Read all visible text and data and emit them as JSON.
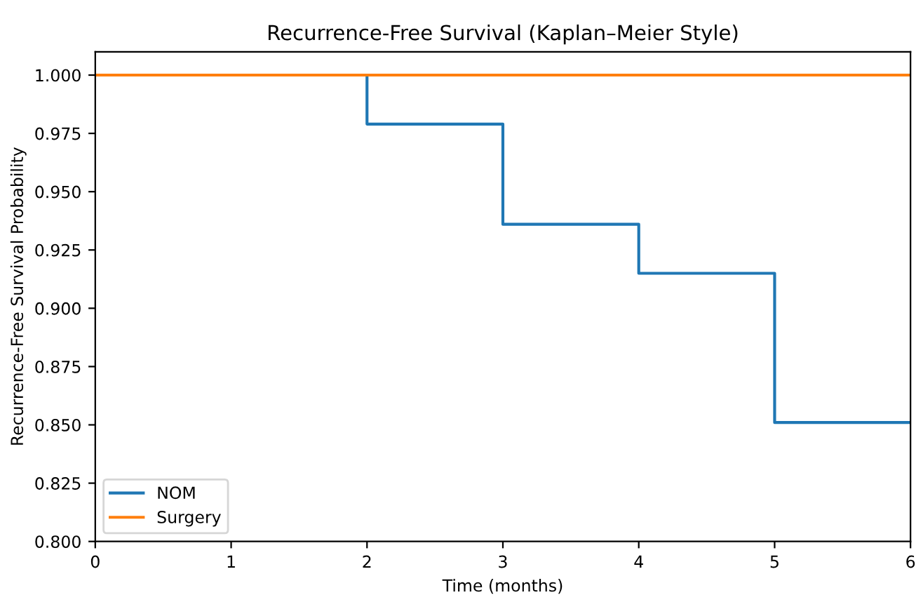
{
  "chart_data": {
    "type": "step",
    "title": "Recurrence-Free Survival (Kaplan–Meier Style)",
    "xlabel": "Time (months)",
    "ylabel": "Recurrence-Free Survival Probability",
    "x": [
      0,
      2,
      3,
      4,
      5,
      6
    ],
    "series": [
      {
        "name": "NOM",
        "color": "#1f77b4",
        "values": [
          1.0,
          0.979,
          0.936,
          0.915,
          0.851,
          0.851
        ]
      },
      {
        "name": "Surgery",
        "color": "#ff7f0e",
        "values": [
          1.0,
          1.0,
          1.0,
          1.0,
          1.0,
          1.0
        ]
      }
    ],
    "xlim": [
      0,
      6
    ],
    "ylim": [
      0.8,
      1.01
    ],
    "xticks": [
      0,
      1,
      2,
      3,
      4,
      5,
      6
    ],
    "yticks": [
      {
        "value": 0.8,
        "label": "0.800"
      },
      {
        "value": 0.825,
        "label": "0.825"
      },
      {
        "value": 0.85,
        "label": "0.850"
      },
      {
        "value": 0.875,
        "label": "0.875"
      },
      {
        "value": 0.9,
        "label": "0.900"
      },
      {
        "value": 0.925,
        "label": "0.925"
      },
      {
        "value": 0.95,
        "label": "0.950"
      },
      {
        "value": 0.975,
        "label": "0.975"
      },
      {
        "value": 1.0,
        "label": "1.000"
      }
    ],
    "grid": false,
    "legend": "lower left"
  }
}
